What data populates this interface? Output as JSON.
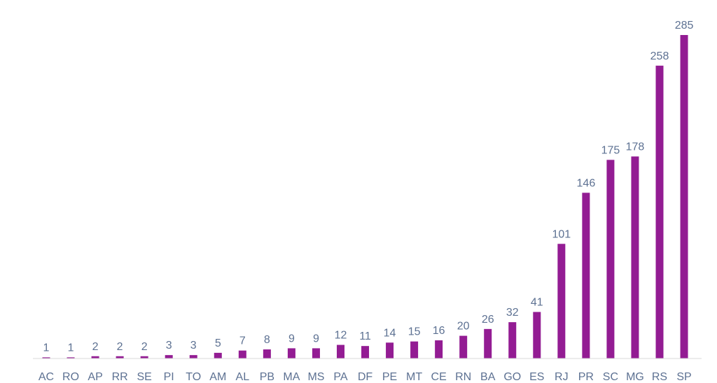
{
  "chart_data": {
    "type": "bar",
    "categories": [
      "AC",
      "RO",
      "AP",
      "RR",
      "SE",
      "PI",
      "TO",
      "AM",
      "AL",
      "PB",
      "MA",
      "MS",
      "PA",
      "DF",
      "PE",
      "MT",
      "CE",
      "RN",
      "BA",
      "GO",
      "ES",
      "RJ",
      "PR",
      "SC",
      "MG",
      "RS",
      "SP"
    ],
    "values": [
      1,
      1,
      2,
      2,
      2,
      3,
      3,
      5,
      7,
      8,
      9,
      9,
      12,
      11,
      14,
      15,
      16,
      20,
      26,
      32,
      41,
      101,
      146,
      175,
      178,
      258,
      285
    ],
    "ylim": [
      0,
      285
    ],
    "grid": false,
    "data_labels": true,
    "colors": {
      "bar": "#931C93",
      "label_text": "#5D7192",
      "axis_line": "#D9D9D9"
    }
  }
}
